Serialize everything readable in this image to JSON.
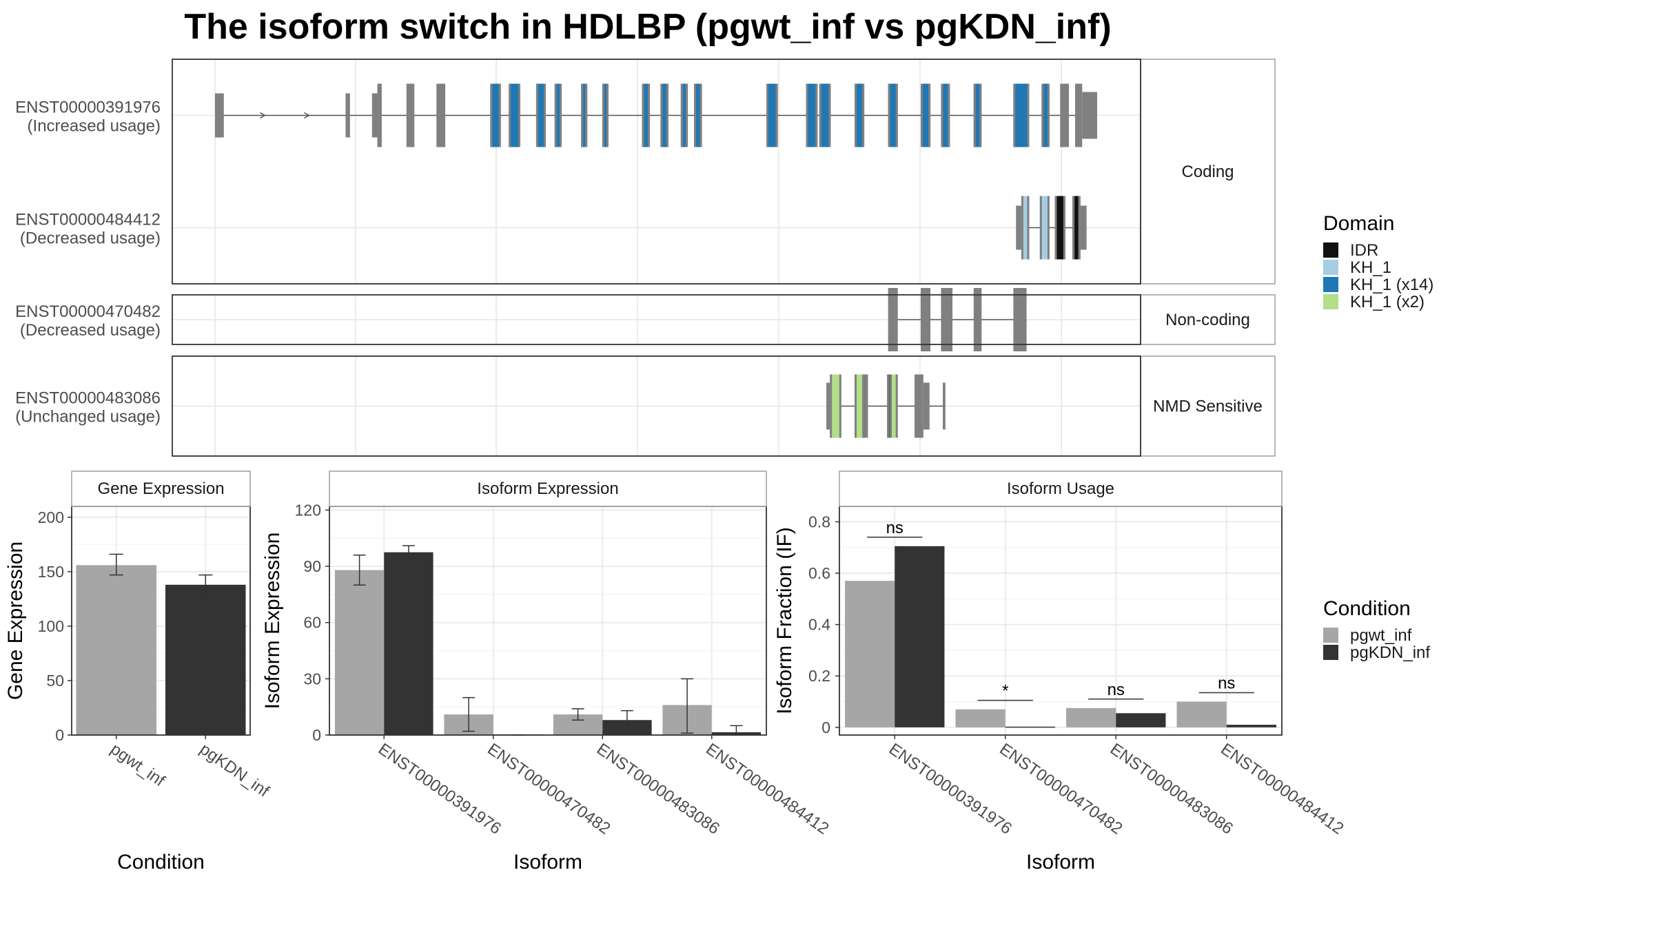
{
  "title": "The isoform switch in HDLBP (pgwt_inf vs pgKDN_inf)",
  "transcript_panel": {
    "x_range": [
      0,
      1000
    ],
    "facets": [
      {
        "label": "Coding",
        "rows": 2
      },
      {
        "label": "Non-coding",
        "rows": 1
      },
      {
        "label": "NMD Sensitive",
        "rows": 1
      }
    ],
    "transcripts": [
      {
        "id": "ENST00000391976",
        "usage": "(Increased usage)",
        "facet": 0,
        "row": 0,
        "span": [
          0,
          1000
        ],
        "exons": [
          {
            "start": 0,
            "end": 10,
            "size": "small",
            "domain": null
          },
          {
            "start": 148,
            "end": 153,
            "size": "small",
            "domain": null
          },
          {
            "start": 178,
            "end": 184,
            "size": "small",
            "domain": null
          },
          {
            "start": 184,
            "end": 189,
            "size": "large",
            "domain": null
          },
          {
            "start": 217,
            "end": 226,
            "size": "large",
            "domain": null
          },
          {
            "start": 251,
            "end": 261,
            "size": "large",
            "domain": null
          },
          {
            "start": 312,
            "end": 324,
            "size": "large",
            "domain": "KH_1 (x14)"
          },
          {
            "start": 333,
            "end": 346,
            "size": "large",
            "domain": "KH_1 (x14)"
          },
          {
            "start": 364,
            "end": 375,
            "size": "large",
            "domain": "KH_1 (x14)"
          },
          {
            "start": 385,
            "end": 393,
            "size": "large",
            "domain": "KH_1 (x14)"
          },
          {
            "start": 415,
            "end": 422,
            "size": "large",
            "domain": "KH_1 (x14)"
          },
          {
            "start": 439,
            "end": 446,
            "size": "large",
            "domain": "KH_1 (x14)"
          },
          {
            "start": 484,
            "end": 493,
            "size": "large",
            "domain": "KH_1 (x14)"
          },
          {
            "start": 505,
            "end": 514,
            "size": "large",
            "domain": "KH_1 (x14)"
          },
          {
            "start": 528,
            "end": 536,
            "size": "large",
            "domain": "KH_1 (x14)"
          },
          {
            "start": 543,
            "end": 552,
            "size": "large",
            "domain": "KH_1 (x14)"
          },
          {
            "start": 625,
            "end": 638,
            "size": "large",
            "domain": "KH_1 (x14)"
          },
          {
            "start": 670,
            "end": 683,
            "size": "large",
            "domain": "KH_1 (x14)"
          },
          {
            "start": 685,
            "end": 698,
            "size": "large",
            "domain": "KH_1 (x14)"
          },
          {
            "start": 725,
            "end": 736,
            "size": "large",
            "domain": "KH_1 (x14)"
          },
          {
            "start": 763,
            "end": 774,
            "size": "large",
            "domain": "KH_1 (x14)"
          },
          {
            "start": 800,
            "end": 811,
            "size": "large",
            "domain": "KH_1 (x14)"
          },
          {
            "start": 823,
            "end": 833,
            "size": "large",
            "domain": "KH_1 (x14)"
          },
          {
            "start": 860,
            "end": 869,
            "size": "large",
            "domain": "KH_1 (x14)"
          },
          {
            "start": 905,
            "end": 923,
            "size": "large",
            "domain": "KH_1 (x14)"
          },
          {
            "start": 937,
            "end": 946,
            "size": "large",
            "domain": "KH_1 (x14)"
          },
          {
            "start": 958,
            "end": 968,
            "size": "large",
            "domain": null
          },
          {
            "start": 975,
            "end": 983,
            "size": "large",
            "domain": null
          },
          {
            "start": 983,
            "end": 1000,
            "size": "medium",
            "domain": null
          }
        ]
      },
      {
        "id": "ENST00000484412",
        "usage": "(Decreased usage)",
        "facet": 0,
        "row": 1,
        "span": [
          908,
          988
        ],
        "exons": [
          {
            "start": 908,
            "end": 914,
            "size": "small",
            "domain": null
          },
          {
            "start": 914,
            "end": 923,
            "size": "large",
            "domain": "KH_1"
          },
          {
            "start": 935,
            "end": 946,
            "size": "large",
            "domain": "KH_1"
          },
          {
            "start": 952,
            "end": 964,
            "size": "large",
            "domain": "IDR"
          },
          {
            "start": 972,
            "end": 981,
            "size": "large",
            "domain": "IDR"
          },
          {
            "start": 981,
            "end": 988,
            "size": "small",
            "domain": null
          }
        ]
      },
      {
        "id": "ENST00000470482",
        "usage": "(Decreased usage)",
        "facet": 1,
        "row": 0,
        "span": [
          763,
          920
        ],
        "exons": [
          {
            "start": 763,
            "end": 774,
            "size": "large",
            "domain": null
          },
          {
            "start": 800,
            "end": 811,
            "size": "large",
            "domain": null
          },
          {
            "start": 823,
            "end": 836,
            "size": "large",
            "domain": null
          },
          {
            "start": 860,
            "end": 869,
            "size": "large",
            "domain": null
          },
          {
            "start": 905,
            "end": 920,
            "size": "large",
            "domain": null
          }
        ]
      },
      {
        "id": "ENST00000483086",
        "usage": "(Unchanged usage)",
        "facet": 2,
        "row": 0,
        "span": [
          693,
          828
        ],
        "exons": [
          {
            "start": 693,
            "end": 697,
            "size": "medium",
            "domain": null
          },
          {
            "start": 697,
            "end": 710,
            "size": "large",
            "domain": "KH_1 (x2)"
          },
          {
            "start": 725,
            "end": 736,
            "size": "large",
            "domain": "KH_1 (x2)"
          },
          {
            "start": 736,
            "end": 740,
            "size": "large",
            "domain": "IDR"
          },
          {
            "start": 762,
            "end": 774,
            "size": "large",
            "domain": "KH_1 (x2)"
          },
          {
            "start": 762,
            "end": 767,
            "size": "large",
            "domain": "IDR"
          },
          {
            "start": 793,
            "end": 803,
            "size": "large",
            "domain": null
          },
          {
            "start": 803,
            "end": 810,
            "size": "medium",
            "domain": null
          },
          {
            "start": 825,
            "end": 828,
            "size": "medium",
            "domain": null
          }
        ]
      }
    ]
  },
  "domain_legend": {
    "title": "Domain",
    "items": [
      {
        "label": "IDR",
        "color": "#111111"
      },
      {
        "label": "KH_1",
        "color": "#a6cee3"
      },
      {
        "label": "KH_1 (x14)",
        "color": "#1f78b4"
      },
      {
        "label": "KH_1 (x2)",
        "color": "#b2df8a"
      }
    ]
  },
  "condition_legend": {
    "title": "Condition",
    "items": [
      {
        "label": "pgwt_inf",
        "color": "#a6a6a6"
      },
      {
        "label": "pgKDN_inf",
        "color": "#333333"
      }
    ]
  },
  "chart_data": [
    {
      "type": "bar",
      "title": "Gene Expression",
      "xlabel": "Condition",
      "ylabel": "Gene Expression",
      "ylim": [
        0,
        210
      ],
      "yticks": [
        0,
        50,
        100,
        150,
        200
      ],
      "categories": [
        "pgwt_inf",
        "pgKDN_inf"
      ],
      "values": [
        156,
        138
      ],
      "errors": [
        [
          147,
          166
        ],
        [
          130,
          147
        ]
      ],
      "colors": [
        "#a6a6a6",
        "#333333"
      ]
    },
    {
      "type": "bar",
      "title": "Isoform Expression",
      "xlabel": "Isoform",
      "ylabel": "Isoform Expression",
      "ylim": [
        0,
        122
      ],
      "yticks": [
        0,
        30,
        60,
        90,
        120
      ],
      "categories": [
        "ENST00000391976",
        "ENST00000470482",
        "ENST00000483086",
        "ENST00000484412"
      ],
      "series": [
        {
          "name": "pgwt_inf",
          "color": "#a6a6a6",
          "values": [
            88,
            11,
            11,
            16
          ],
          "errors": [
            [
              80,
              96
            ],
            [
              2,
              20
            ],
            [
              8,
              14
            ],
            [
              1,
              30
            ]
          ]
        },
        {
          "name": "pgKDN_inf",
          "color": "#333333",
          "values": [
            97.5,
            0,
            8,
            1.5
          ],
          "errors": [
            [
              94,
              101
            ],
            [
              0,
              0
            ],
            [
              2,
              13
            ],
            [
              0,
              5
            ]
          ]
        }
      ]
    },
    {
      "type": "bar",
      "title": "Isoform Usage",
      "xlabel": "Isoform",
      "ylabel": "Isoform Fraction (IF)",
      "ylim": [
        -0.03,
        0.86
      ],
      "yticks": [
        0.0,
        0.2,
        0.4,
        0.6,
        0.8
      ],
      "categories": [
        "ENST00000391976",
        "ENST00000470482",
        "ENST00000483086",
        "ENST00000484412"
      ],
      "series": [
        {
          "name": "pgwt_inf",
          "color": "#a6a6a6",
          "values": [
            0.57,
            0.07,
            0.075,
            0.1
          ]
        },
        {
          "name": "pgKDN_inf",
          "color": "#333333",
          "values": [
            0.705,
            0.0,
            0.055,
            0.01
          ]
        }
      ],
      "significance": [
        {
          "label": "ns",
          "y": 0.74
        },
        {
          "label": "*",
          "y": 0.105
        },
        {
          "label": "ns",
          "y": 0.11
        },
        {
          "label": "ns",
          "y": 0.135
        }
      ]
    }
  ]
}
